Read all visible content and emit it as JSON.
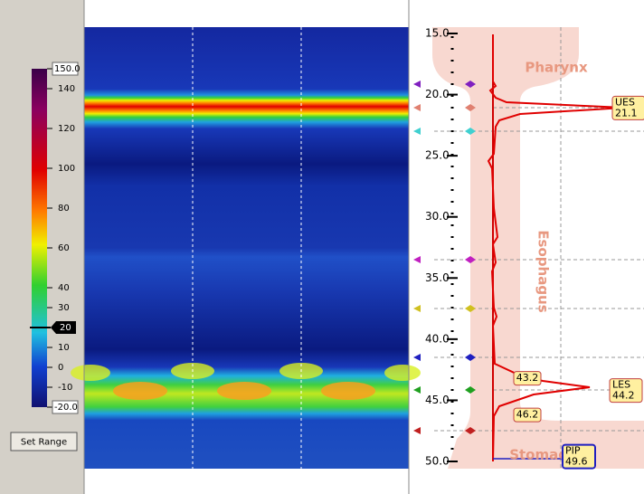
{
  "color_scale": {
    "ticks": [
      {
        "value": 150,
        "label": "150.0"
      },
      140,
      120,
      100,
      80,
      60,
      40,
      30,
      10,
      0,
      -10,
      {
        "value": -20,
        "label": "-20.0"
      }
    ],
    "threshold": 20
  },
  "button": "Set Range",
  "depth_axis": {
    "ticks": [
      {
        "value": 15,
        "label": "15.0"
      },
      {
        "value": 20,
        "label": "20.0"
      },
      {
        "value": 25,
        "label": "25.0"
      },
      {
        "value": 30,
        "label": "30.0"
      },
      {
        "value": 35,
        "label": "35.0"
      },
      {
        "value": 40,
        "label": "40.0"
      },
      {
        "value": 45,
        "label": "45.0"
      },
      {
        "value": 50,
        "label": "50.0"
      }
    ]
  },
  "regions": [
    "Pharynx",
    "Esophagus",
    "Stomach"
  ],
  "markers": [
    {
      "name": "UES",
      "depth": 21.1
    },
    {
      "depth": 43.2
    },
    {
      "name": "LES",
      "depth": 44.2
    },
    {
      "depth": 46.2
    },
    {
      "name": "PIP",
      "depth": 49.6
    }
  ]
}
